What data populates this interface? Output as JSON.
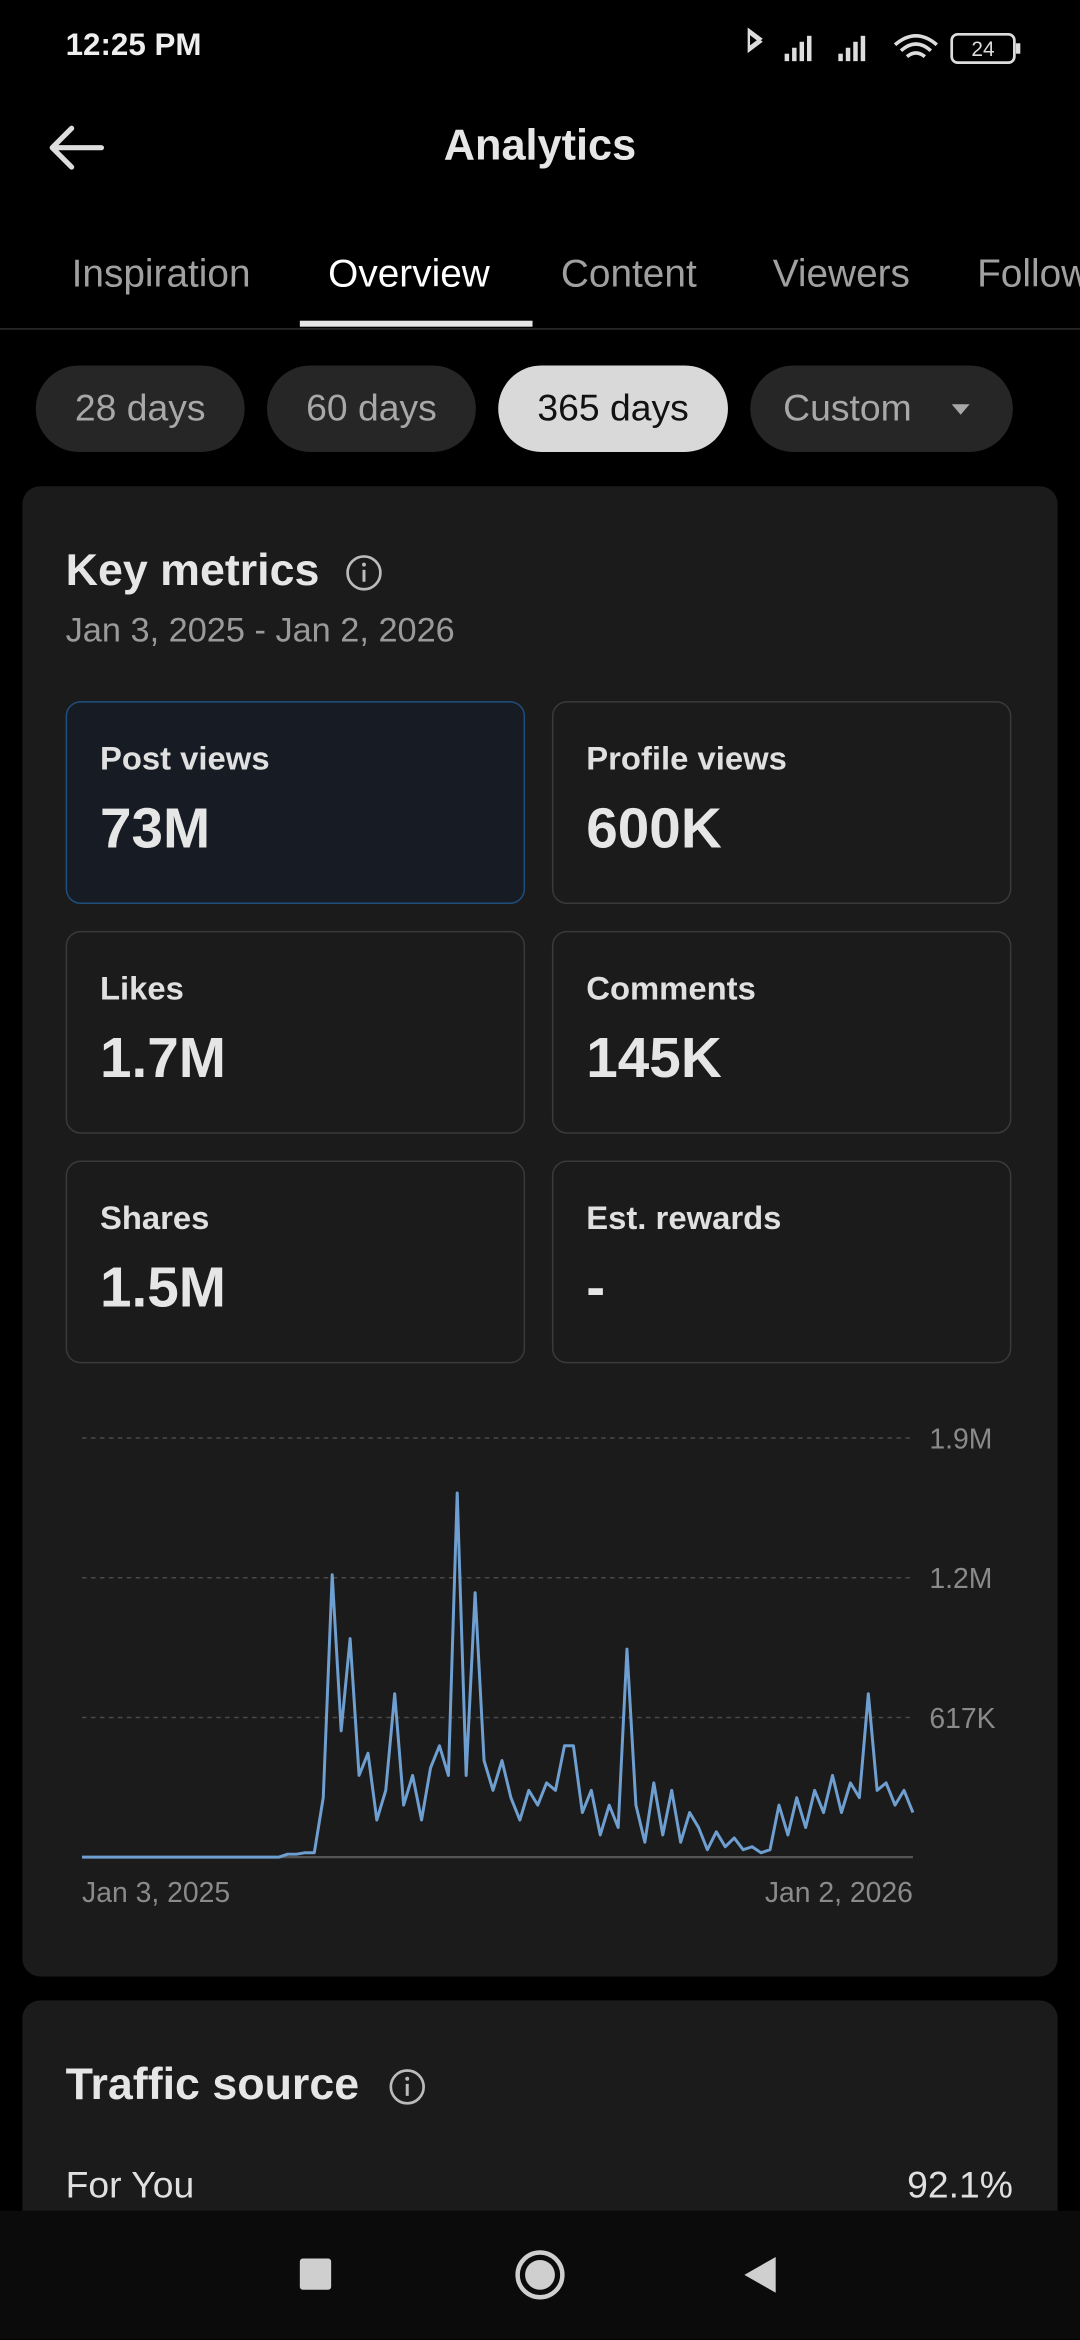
{
  "status_bar": {
    "time": "12:25 PM",
    "battery": "24"
  },
  "header": {
    "title": "Analytics"
  },
  "tabs": {
    "items": [
      "Inspiration",
      "Overview",
      "Content",
      "Viewers",
      "Followers"
    ],
    "selected": 1
  },
  "filters": {
    "items": [
      "28 days",
      "60 days",
      "365 days",
      "Custom"
    ],
    "selected": 2
  },
  "key_metrics": {
    "title": "Key metrics",
    "date_range": "Jan 3, 2025 - Jan 2, 2026",
    "metrics": [
      {
        "label": "Post views",
        "value": "73M"
      },
      {
        "label": "Profile views",
        "value": "600K"
      },
      {
        "label": "Likes",
        "value": "1.7M"
      },
      {
        "label": "Comments",
        "value": "145K"
      },
      {
        "label": "Shares",
        "value": "1.5M"
      },
      {
        "label": "Est. rewards",
        "value": "-"
      }
    ]
  },
  "chart_data": {
    "type": "line",
    "color": "#6f9fd0",
    "grid": true,
    "categories": [
      "Jan 3, 2025",
      null,
      null,
      null,
      null,
      null,
      null,
      null,
      null,
      null,
      null,
      null,
      null,
      null,
      null,
      null,
      null,
      null,
      null,
      null,
      null,
      null,
      null,
      null,
      null,
      null,
      null,
      null,
      null,
      null,
      null,
      null,
      null,
      null,
      null,
      null,
      null,
      null,
      null,
      null,
      null,
      null,
      null,
      null,
      null,
      null,
      null,
      null,
      null,
      null,
      null,
      null,
      null,
      null,
      null,
      null,
      null,
      null,
      null,
      null,
      null,
      null,
      null,
      null,
      null,
      null,
      null,
      null,
      null,
      null,
      null,
      null,
      null,
      null,
      null,
      null,
      null,
      null,
      null,
      null,
      null,
      null,
      null,
      null,
      null,
      null,
      null,
      null,
      null,
      null,
      null,
      null,
      null,
      "Jan 2, 2026"
    ],
    "values": [
      0,
      0,
      0,
      0,
      0,
      0,
      0,
      0,
      0,
      0,
      0,
      0,
      0,
      0,
      0,
      0,
      0,
      0,
      0,
      0,
      0,
      0,
      0,
      13000,
      13000,
      20000,
      20000,
      263000,
      1247000,
      558000,
      965000,
      361000,
      459000,
      164000,
      295000,
      722000,
      230000,
      361000,
      164000,
      394000,
      492000,
      361000,
      1608000,
      361000,
      1168000,
      427000,
      295000,
      427000,
      263000,
      164000,
      295000,
      230000,
      328000,
      295000,
      492000,
      492000,
      197000,
      295000,
      98000,
      230000,
      131000,
      919000,
      230000,
      66000,
      328000,
      98000,
      295000,
      66000,
      197000,
      131000,
      33000,
      112000,
      46000,
      85000,
      33000,
      46000,
      20000,
      33000,
      230000,
      98000,
      263000,
      131000,
      295000,
      197000,
      361000,
      197000,
      328000,
      263000,
      722000,
      295000,
      328000,
      230000,
      295000,
      197000
    ],
    "ylim": [
      0,
      1851000
    ],
    "yticks": [
      {
        "value": 617000,
        "label": "617K"
      },
      {
        "value": 1234000,
        "label": "1.2M"
      },
      {
        "value": 1851000,
        "label": "1.9M"
      }
    ]
  },
  "traffic_source": {
    "title": "Traffic source",
    "rows": [
      {
        "label": "For You",
        "value": "92.1%"
      }
    ]
  }
}
